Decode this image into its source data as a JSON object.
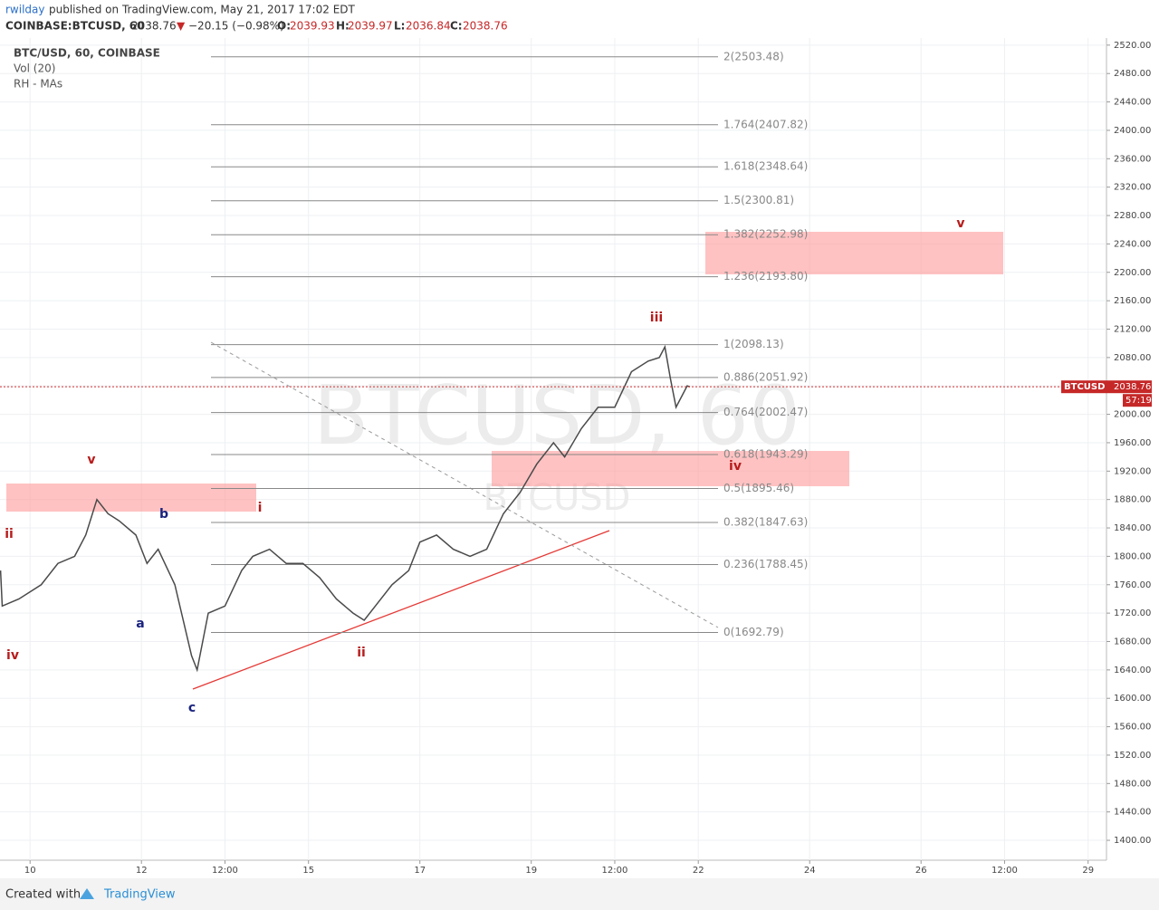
{
  "header": {
    "author": "rwilday",
    "published": "published on TradingView.com, May 21, 2017 17:02 EDT",
    "symbol": "COINBASE:BTCUSD, 60",
    "last": "2038.76",
    "arrow": "▼",
    "change": "−20.15 (−0.98%)",
    "o_label": "O:",
    "o": "2039.93",
    "h_label": "H:",
    "h": "2039.97",
    "l_label": "L:",
    "l": "2036.84",
    "c_label": "C:",
    "c": "2038.76"
  },
  "legend": [
    "BTC/USD, 60, COINBASE",
    "Vol (20)",
    "RH - MAs"
  ],
  "watermark": {
    "big": "BTCUSD, 60",
    "small": "BTCUSD"
  },
  "footer": {
    "created": "Created with",
    "brand": "TradingView"
  },
  "chart_data": {
    "type": "line",
    "price_tag": {
      "symbol": "BTCUSD",
      "value": 2038.76,
      "label": "2038.76",
      "countdown": "57:19"
    },
    "xlim": [
      9.46,
      29.33
    ],
    "xticks": [
      10,
      12,
      {
        "value": 13.5,
        "label": "12:00"
      },
      15,
      17,
      19,
      {
        "value": 20.5,
        "label": "12:00"
      },
      22,
      24,
      26,
      {
        "value": 27.5,
        "label": "12:00"
      },
      29
    ],
    "ylim": [
      1372,
      2530
    ],
    "yticks": [
      {
        "value": 2520,
        "label": "2520.00"
      },
      {
        "value": 2480,
        "label": "2480.00"
      },
      {
        "value": 2440,
        "label": "2440.00"
      },
      {
        "value": 2400,
        "label": "2400.00"
      },
      {
        "value": 2360,
        "label": "2360.00"
      },
      {
        "value": 2320,
        "label": "2320.00"
      },
      {
        "value": 2280,
        "label": "2280.00"
      },
      {
        "value": 2240,
        "label": "2240.00"
      },
      {
        "value": 2200,
        "label": "2200.00"
      },
      {
        "value": 2160,
        "label": "2160.00"
      },
      {
        "value": 2120,
        "label": "2120.00"
      },
      {
        "value": 2080,
        "label": "2080.00"
      },
      {
        "value": 2040,
        "label": "2040.00"
      },
      {
        "value": 2000,
        "label": "2000.00"
      },
      {
        "value": 1960,
        "label": "1960.00"
      },
      {
        "value": 1920,
        "label": "1920.00"
      },
      {
        "value": 1880,
        "label": "1880.00"
      },
      {
        "value": 1840,
        "label": "1840.00"
      },
      {
        "value": 1800,
        "label": "1800.00"
      },
      {
        "value": 1760,
        "label": "1760.00"
      },
      {
        "value": 1720,
        "label": "1720.00"
      },
      {
        "value": 1680,
        "label": "1680.00"
      },
      {
        "value": 1640,
        "label": "1640.00"
      },
      {
        "value": 1600,
        "label": "1600.00"
      },
      {
        "value": 1560,
        "label": "1560.00"
      },
      {
        "value": 1520,
        "label": "1520.00"
      },
      {
        "value": 1480,
        "label": "1480.00"
      },
      {
        "value": 1440,
        "label": "1440.00"
      },
      {
        "value": 1400,
        "label": "1400.00"
      }
    ],
    "grid": true,
    "series": [
      {
        "name": "BTC/USD",
        "color": "#4a4a4a",
        "x": [
          9.47,
          9.5,
          9.8,
          10.2,
          10.5,
          10.8,
          11.0,
          11.2,
          11.4,
          11.6,
          11.9,
          12.1,
          12.3,
          12.6,
          12.9,
          13.0,
          13.2,
          13.5,
          13.8,
          14.0,
          14.3,
          14.6,
          14.9,
          15.2,
          15.5,
          15.8,
          16.0,
          16.2,
          16.5,
          16.8,
          17.0,
          17.3,
          17.6,
          17.9,
          18.2,
          18.5,
          18.8,
          19.1,
          19.4,
          19.6,
          19.9,
          20.2,
          20.5,
          20.8,
          21.1,
          21.3,
          21.4,
          21.5,
          21.6,
          21.8,
          21.85
        ],
        "values": [
          1780,
          1730,
          1740,
          1760,
          1790,
          1800,
          1830,
          1880,
          1860,
          1850,
          1830,
          1790,
          1810,
          1760,
          1660,
          1640,
          1720,
          1730,
          1780,
          1800,
          1810,
          1790,
          1790,
          1770,
          1740,
          1720,
          1710,
          1730,
          1760,
          1780,
          1820,
          1830,
          1810,
          1800,
          1810,
          1860,
          1890,
          1930,
          1960,
          1940,
          1980,
          2010,
          2010,
          2060,
          2075,
          2080,
          2095,
          2050,
          2010,
          2040,
          2038.76
        ]
      }
    ],
    "fib_levels": [
      {
        "value": 2503.48,
        "label": "2(2503.48)"
      },
      {
        "value": 2407.82,
        "label": "1.764(2407.82)"
      },
      {
        "value": 2348.64,
        "label": "1.618(2348.64)"
      },
      {
        "value": 2300.81,
        "label": "1.5(2300.81)"
      },
      {
        "value": 2252.98,
        "label": "1.382(2252.98)"
      },
      {
        "value": 2193.8,
        "label": "1.236(2193.80)"
      },
      {
        "value": 2098.13,
        "label": "1(2098.13)"
      },
      {
        "value": 2051.92,
        "label": "0.886(2051.92)"
      },
      {
        "value": 2002.47,
        "label": "0.764(2002.47)"
      },
      {
        "value": 1943.29,
        "label": "0.618(1943.29)"
      },
      {
        "value": 1895.46,
        "label": "0.5(1895.46)"
      },
      {
        "value": 1847.63,
        "label": "0.382(1847.63)"
      },
      {
        "value": 1788.45,
        "label": "0.236(1788.45)"
      },
      {
        "value": 1692.79,
        "label": "0(1692.79)"
      }
    ],
    "wave_labels": [
      "v",
      "ii",
      "iv",
      "b",
      "a",
      "c",
      "i",
      "ii",
      "iii",
      "iv",
      "v"
    ]
  }
}
